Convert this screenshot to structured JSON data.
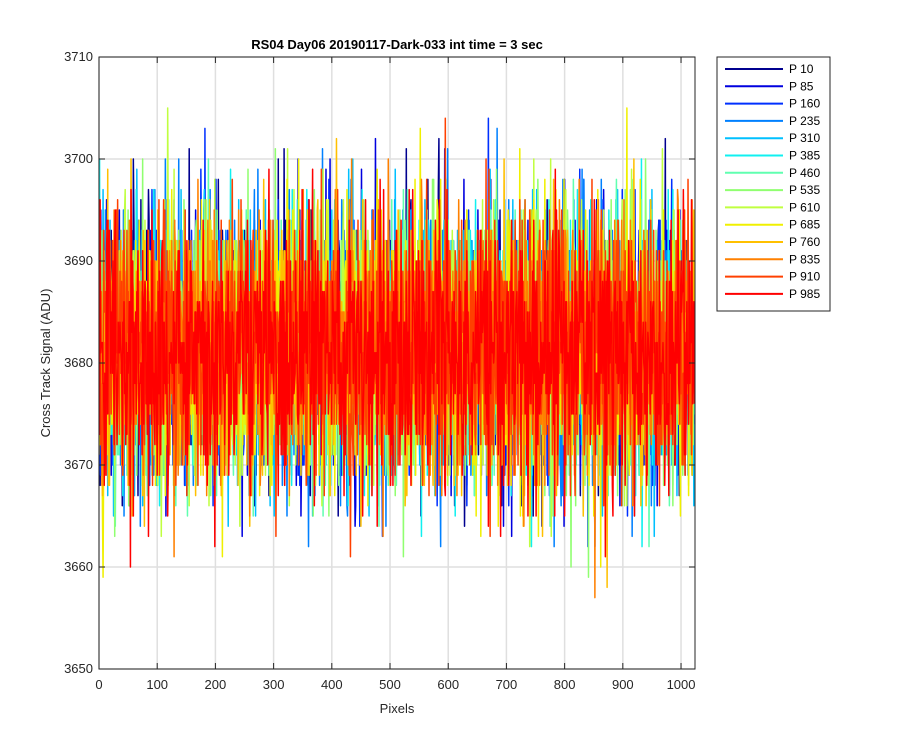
{
  "chart_data": {
    "type": "line",
    "title": "RS04 Day06 20190117-Dark-033 int time = 3 sec",
    "xlabel": "Pixels",
    "ylabel": "Cross Track Signal (ADU)",
    "xlim": [
      0,
      1024
    ],
    "ylim": [
      3650,
      3710
    ],
    "xticks": [
      "0",
      "100",
      "200",
      "300",
      "400",
      "500",
      "600",
      "700",
      "800",
      "900",
      "1000"
    ],
    "yticks": [
      "3650",
      "3660",
      "3670",
      "3680",
      "3690",
      "3700",
      "3710"
    ],
    "grid": true,
    "legend_position": "outside-top-right",
    "noise": {
      "mean": 3681.5,
      "std": 6.5,
      "min": 3651,
      "max": 3708,
      "points_per_series": 1024
    },
    "series": [
      {
        "name": "P 10",
        "color": "#00008f"
      },
      {
        "name": "P 85",
        "color": "#0000df"
      },
      {
        "name": "P 160",
        "color": "#0030ff"
      },
      {
        "name": "P 235",
        "color": "#0080ff"
      },
      {
        "name": "P 310",
        "color": "#00c0ff"
      },
      {
        "name": "P 385",
        "color": "#10f0f0"
      },
      {
        "name": "P 460",
        "color": "#60ffb0"
      },
      {
        "name": "P 535",
        "color": "#90ff70"
      },
      {
        "name": "P 610",
        "color": "#c0ff40"
      },
      {
        "name": "P 685",
        "color": "#f0f000"
      },
      {
        "name": "P 760",
        "color": "#ffc000"
      },
      {
        "name": "P 835",
        "color": "#ff8000"
      },
      {
        "name": "P 910",
        "color": "#ff4000"
      },
      {
        "name": "P 985",
        "color": "#ff0000"
      }
    ]
  }
}
